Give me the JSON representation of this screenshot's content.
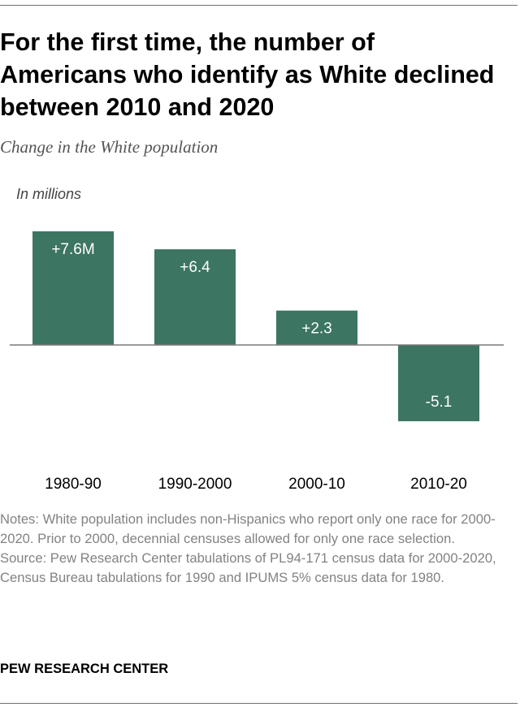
{
  "title": "For the first time, the number of Americans who identify as White declined between 2010 and 2020",
  "subtitle": "Change in the White population",
  "unit_label": "In millions",
  "colors": {
    "bar": "#3c7562",
    "baseline": "#7a7a7a",
    "label": "#ffffff",
    "category": "#000000"
  },
  "chart_data": {
    "type": "bar",
    "title": "For the first time, the number of Americans who identify as White declined between 2010 and 2020",
    "subtitle": "Change in the White population",
    "ylabel": "In millions",
    "xlabel": "",
    "categories": [
      "1980-90",
      "1990-2000",
      "2000-10",
      "2010-20"
    ],
    "values": [
      7.6,
      6.4,
      2.3,
      -5.1
    ],
    "data_labels": [
      "+7.6M",
      "+6.4",
      "+2.3",
      "-5.1"
    ],
    "ylim": [
      -5.1,
      7.6
    ],
    "grid": false
  },
  "notes": {
    "note": "Notes: White population includes non-Hispanics who report only one race for 2000-2020. Prior to 2000, decennial censuses allowed for only one race selection.",
    "source": "Source: Pew Research Center tabulations of PL94-171 census data for 2000-2020, Census Bureau tabulations for 1990 and IPUMS 5% census data for 1980."
  },
  "brand": "PEW RESEARCH CENTER"
}
